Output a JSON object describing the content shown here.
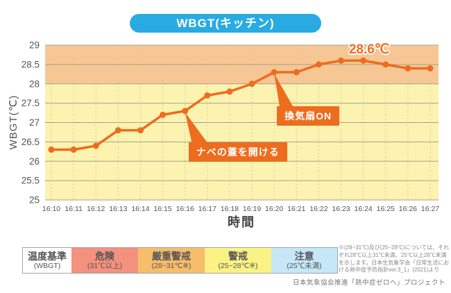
{
  "title": "WBGT(キッチン)",
  "colors": {
    "accent_blue": "#29ABE2",
    "line_orange": "#ED6C1E",
    "annotation_orange": "#ED6C1E",
    "band_severe_warning": "#F6C795",
    "band_warning": "#FBF3AF",
    "danger_red": "#F5917F",
    "caution_blue": "#C5E7F7",
    "axis_text": "#555555"
  },
  "chart_data": {
    "type": "line",
    "title": "WBGT(キッチン)",
    "x": [
      "16:10",
      "16:11",
      "16:12",
      "16:13",
      "16:14",
      "16:15",
      "16:16",
      "16:17",
      "16:18",
      "16:19",
      "16:20",
      "16:21",
      "16:22",
      "16:23",
      "16:24",
      "16:25",
      "16:26",
      "16:27"
    ],
    "series": [
      {
        "name": "WBGT",
        "values": [
          26.3,
          26.3,
          26.4,
          26.8,
          26.8,
          27.2,
          27.3,
          27.7,
          27.8,
          28.0,
          28.3,
          28.3,
          28.5,
          28.6,
          28.6,
          28.5,
          28.4,
          28.4
        ]
      }
    ],
    "xlabel": "時間",
    "ylabel": "WBGT(℃)",
    "ylim": [
      25,
      29
    ],
    "yticks": [
      29,
      28.5,
      28,
      27.5,
      27,
      26.5,
      26,
      25.5,
      25
    ],
    "grid": true,
    "line_color": "#ED6C1E",
    "bands": [
      {
        "label": "厳重警戒",
        "from": 28,
        "to": 29,
        "color": "#F6C795"
      },
      {
        "label": "警戒",
        "from": 25,
        "to": 28,
        "color": "#FBF3AF"
      }
    ],
    "peak_label": {
      "text": "28.6℃",
      "at_x": "16:23",
      "value": 28.6
    },
    "annotations": [
      {
        "id": "pot-lid",
        "text": "ナベの蓋を開ける",
        "anchor_x": "16:16",
        "anchor_y": 27.3
      },
      {
        "id": "fan-on",
        "text": "換気扇ON",
        "anchor_x": "16:20",
        "anchor_y": 28.3
      }
    ]
  },
  "legend": {
    "cells": [
      {
        "label": "温度基準",
        "sub": "(WBGT)",
        "color": "#FFFFFF"
      },
      {
        "label": "危険",
        "sub": "(31℃以上)",
        "color": "#F5917F"
      },
      {
        "label": "厳重警戒",
        "sub": "(28~31℃※)",
        "color": "#F6BD6B"
      },
      {
        "label": "警戒",
        "sub": "(25~28℃※)",
        "color": "#FAF285"
      },
      {
        "label": "注意",
        "sub": "(25℃未満)",
        "color": "#C5E7F7"
      }
    ]
  },
  "notes": "※(28~31℃)及び(25~28℃)については、それぞれ28℃以上31℃未満、25℃以上28℃未満を示します。日本生気象学会「日常生活における熱中症予防指針ver.3_1」(2021)より",
  "footer": "日本気象協会推進「熱中症ゼロへ」プロジェクト"
}
